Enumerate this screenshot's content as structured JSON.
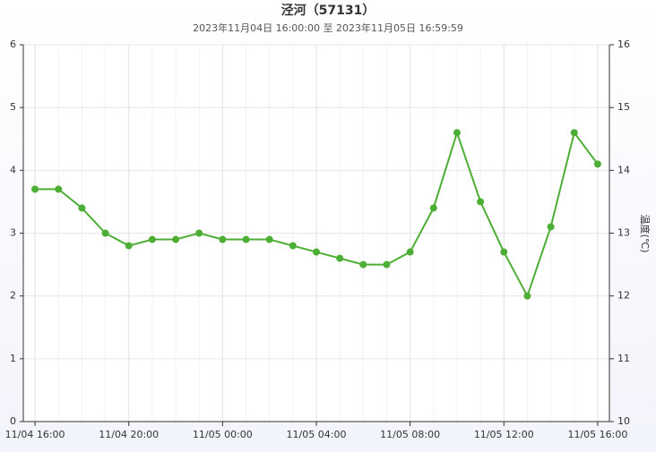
{
  "chart_data": {
    "type": "line",
    "title": "泾河（57131）",
    "subtitle": "2023年11月04日 16:00:00 至 2023年11月05日 16:59:59",
    "y2label": "温度(℃)",
    "categories": [
      "11/04 16:00",
      null,
      null,
      null,
      "11/04 20:00",
      null,
      null,
      null,
      "11/05 00:00",
      null,
      null,
      null,
      "11/05 04:00",
      null,
      null,
      null,
      "11/05 08:00",
      null,
      null,
      null,
      "11/05 12:00",
      null,
      null,
      null,
      "11/05 16:00"
    ],
    "series": [
      {
        "name": "温度",
        "color": "#4cae34",
        "axis": "y2",
        "values": [
          13.7,
          13.7,
          13.4,
          13.0,
          12.8,
          12.9,
          12.9,
          13.0,
          12.9,
          12.9,
          12.9,
          12.8,
          12.7,
          12.6,
          12.5,
          12.5,
          12.7,
          13.4,
          14.6,
          13.5,
          12.7,
          12.0,
          13.1,
          14.6,
          14.1
        ]
      }
    ],
    "ylim": [
      0,
      6
    ],
    "yticks": [
      0,
      1,
      2,
      3,
      4,
      5,
      6
    ],
    "y2lim": [
      10,
      16
    ],
    "y2ticks": [
      10,
      11,
      12,
      13,
      14,
      15,
      16
    ],
    "grid": true
  }
}
